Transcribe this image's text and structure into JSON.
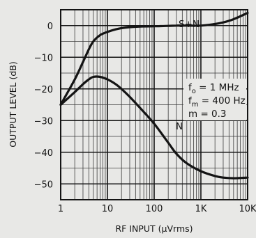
{
  "chart_data": {
    "type": "line",
    "xlabel": "RF INPUT (µVrms)",
    "ylabel": "OUTPUT LEVEL (dB)",
    "xscale": "log",
    "xlim": [
      1,
      10000
    ],
    "ylim": [
      -55,
      5
    ],
    "grid": true,
    "x_ticks": [
      {
        "value": 1,
        "label": "1"
      },
      {
        "value": 10,
        "label": "10"
      },
      {
        "value": 100,
        "label": "100"
      },
      {
        "value": 1000,
        "label": "1K"
      },
      {
        "value": 10000,
        "label": "10K"
      }
    ],
    "y_ticks": [
      {
        "value": 0,
        "label": "0"
      },
      {
        "value": -10,
        "label": "−10"
      },
      {
        "value": -20,
        "label": "−20"
      },
      {
        "value": -30,
        "label": "−30"
      },
      {
        "value": -40,
        "label": "−40"
      },
      {
        "value": -50,
        "label": "−50"
      }
    ],
    "series": [
      {
        "name": "S+N",
        "x": [
          1,
          2,
          3,
          4,
          5,
          7,
          10,
          15,
          20,
          30,
          50,
          100,
          200,
          300,
          500,
          1000,
          2000,
          3000,
          5000,
          10000
        ],
        "y": [
          -25,
          -17,
          -11.5,
          -7.5,
          -5,
          -3,
          -2,
          -1.2,
          -0.8,
          -0.5,
          -0.3,
          -0.2,
          -0.1,
          0,
          0,
          0,
          0.5,
          1,
          2,
          4
        ]
      },
      {
        "name": "N",
        "x": [
          1,
          2,
          3,
          4,
          5,
          7,
          10,
          15,
          20,
          30,
          50,
          100,
          200,
          300,
          500,
          1000,
          2000,
          3000,
          5000,
          10000
        ],
        "y": [
          -25,
          -21,
          -18.5,
          -17,
          -16.2,
          -16.2,
          -17,
          -18.5,
          -20,
          -22.5,
          -26,
          -31,
          -37,
          -40.5,
          -43.5,
          -46,
          -47.5,
          -48,
          -48.2,
          -48
        ]
      }
    ],
    "annotations": [
      {
        "text": "f",
        "sub": "o",
        "value": " = 1 MHz"
      },
      {
        "text": "f",
        "sub": "m",
        "value": " = 400 Hz"
      },
      {
        "text": "m = 0.3"
      }
    ]
  }
}
